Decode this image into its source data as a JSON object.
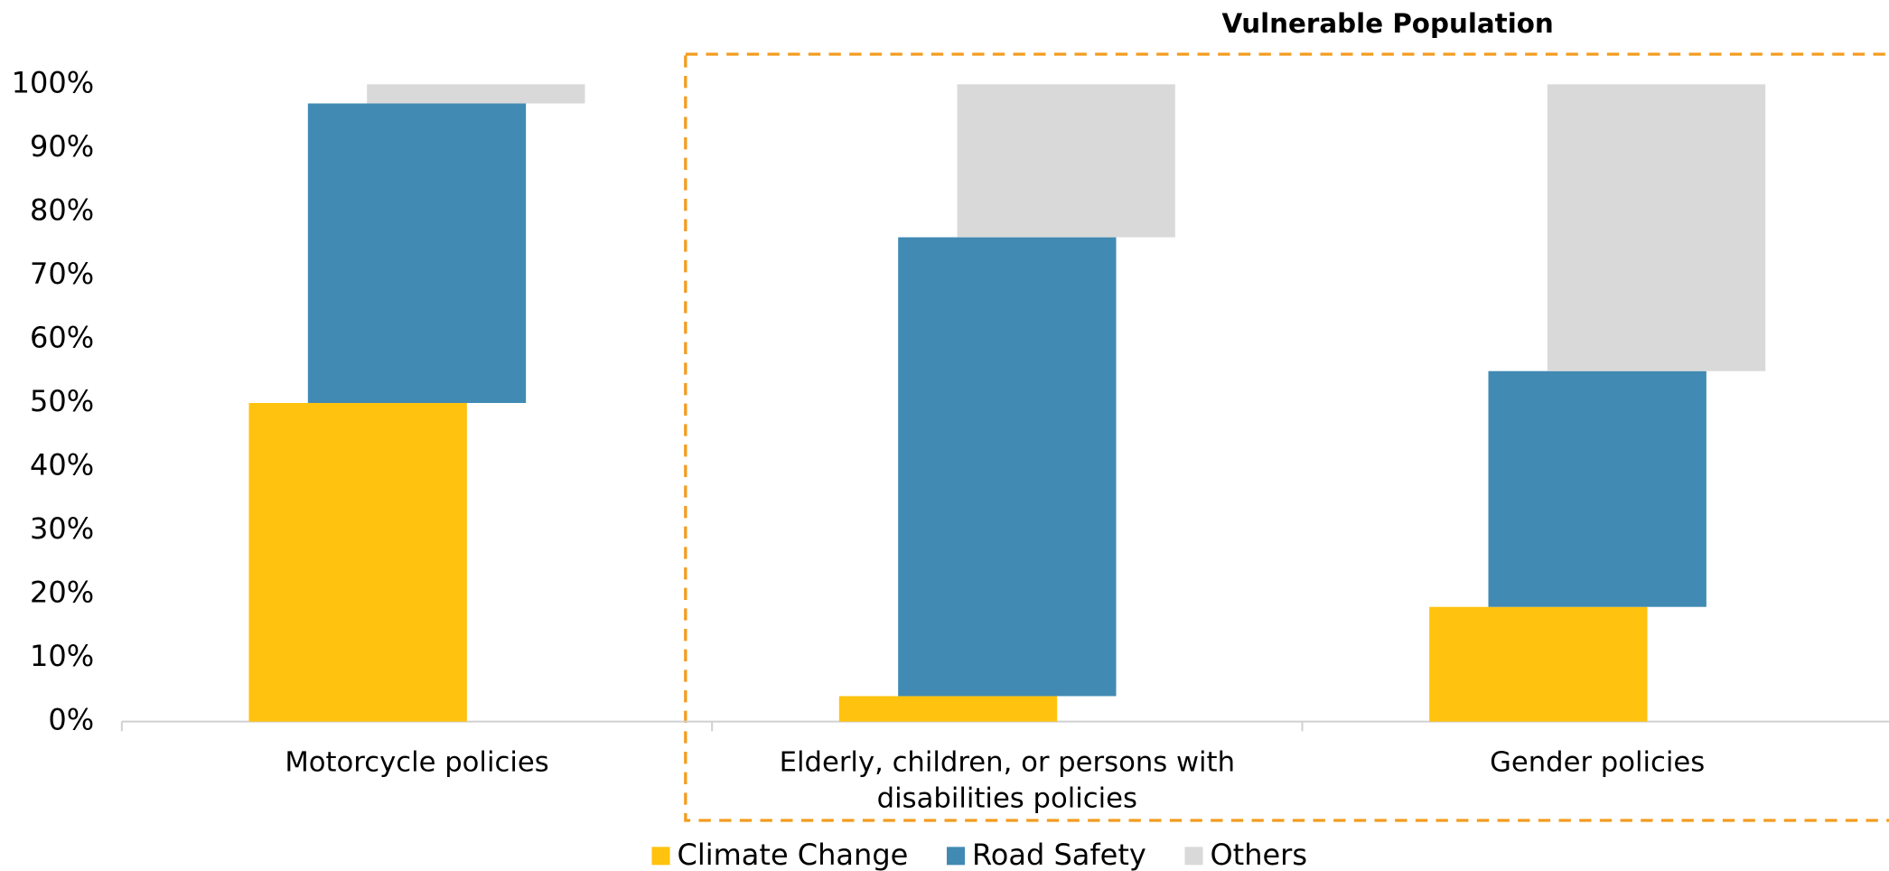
{
  "chart_data": {
    "type": "bar",
    "stacked": true,
    "annotation": "Vulnerable Population",
    "categories": [
      "Motorcycle policies",
      "Elderly, children, or persons with disabilities policies",
      "Gender policies"
    ],
    "series": [
      {
        "name": "Climate Change",
        "color": "#FFC20E",
        "values": [
          50,
          4,
          18
        ]
      },
      {
        "name": "Road Safety",
        "color": "#418AB3",
        "values": [
          47,
          72,
          37
        ]
      },
      {
        "name": "Others",
        "color": "#D9D9D9",
        "values": [
          3,
          24,
          45
        ]
      }
    ],
    "ylim": [
      0,
      100
    ],
    "yticks": [
      {
        "value": 0,
        "label": "0%"
      },
      {
        "value": 10,
        "label": "10%"
      },
      {
        "value": 20,
        "label": "20%"
      },
      {
        "value": 30,
        "label": "30%"
      },
      {
        "value": 40,
        "label": "40%"
      },
      {
        "value": 50,
        "label": "50%"
      },
      {
        "value": 60,
        "label": "60%"
      },
      {
        "value": 70,
        "label": "70%"
      },
      {
        "value": 80,
        "label": "80%"
      },
      {
        "value": 90,
        "label": "90%"
      },
      {
        "value": 100,
        "label": "100%"
      }
    ],
    "grid": false,
    "legend": "bottom"
  }
}
